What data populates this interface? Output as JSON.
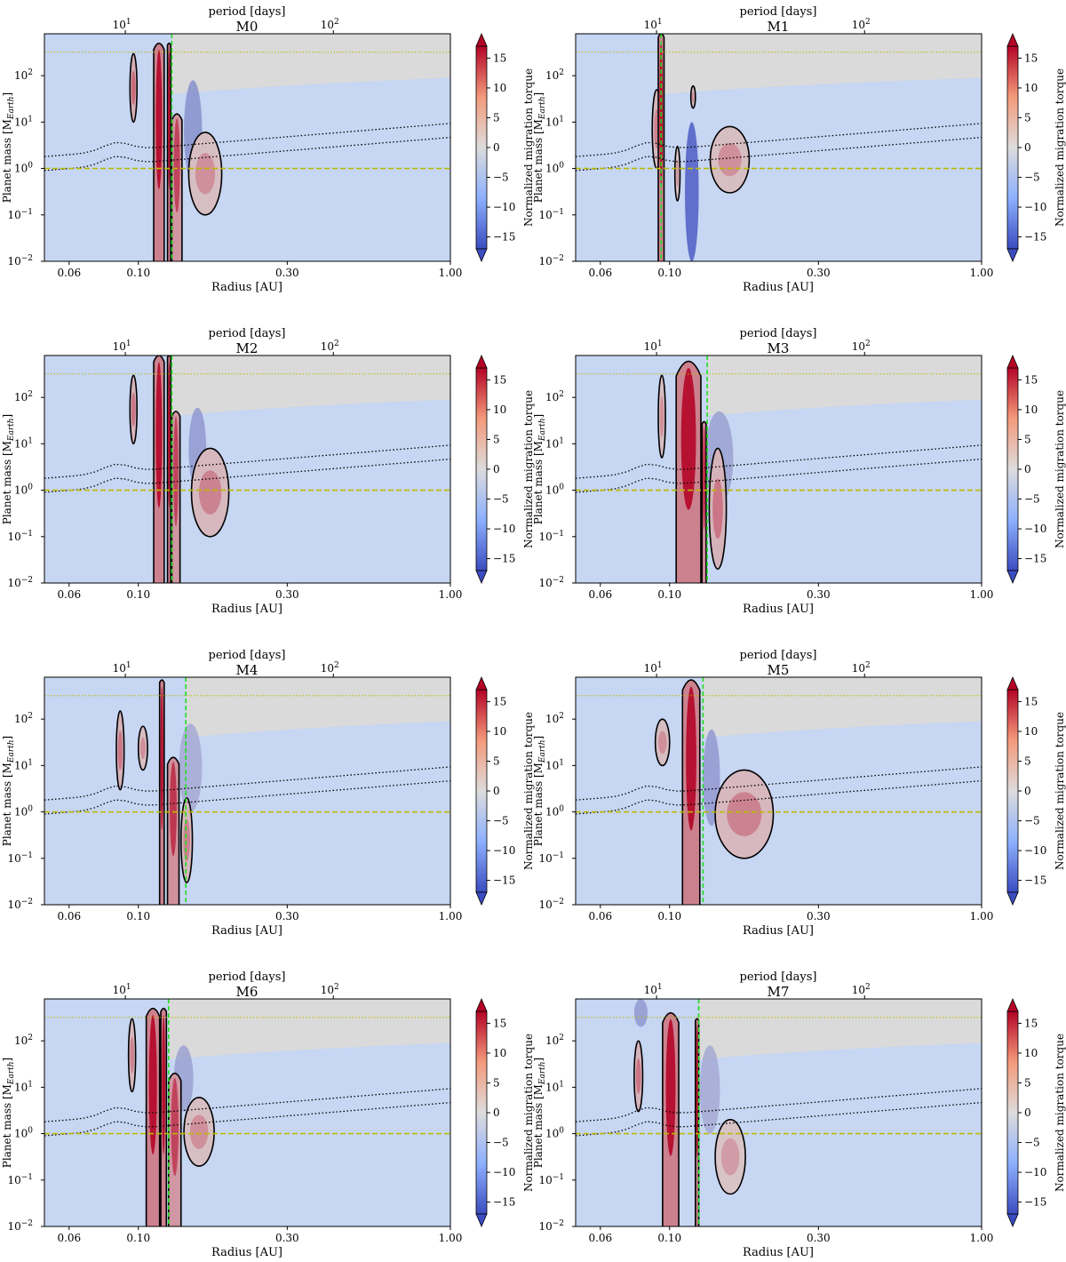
{
  "figure": {
    "colorbar_label": "Normalized migration torque",
    "colorbar_ticks": [
      "15",
      "10",
      "5",
      "0",
      "−5",
      "−10",
      "−15"
    ],
    "colorbar_range": [
      -17,
      17
    ],
    "top_axis_label": "period [days]",
    "top_ticks": [
      {
        "value": 10,
        "label": "10",
        "exp": "1"
      },
      {
        "value": 100,
        "label": "10",
        "exp": "2"
      }
    ],
    "x_axis_label": "Radius [AU]",
    "x_ticks": [
      "0.06",
      "0.10",
      "0.30",
      "1.00"
    ],
    "x_tick_values": [
      0.06,
      0.1,
      0.3,
      1.0
    ],
    "y_axis_label": "Planet mass [M",
    "y_axis_label_sub": "Earth",
    "y_axis_label_end": "]",
    "y_ticks": [
      {
        "value": 0.01,
        "label": "10",
        "exp": "−2"
      },
      {
        "value": 0.1,
        "label": "10",
        "exp": "−1"
      },
      {
        "value": 1,
        "label": "10",
        "exp": "0"
      },
      {
        "value": 10,
        "label": "10",
        "exp": "1"
      },
      {
        "value": 100,
        "label": "10",
        "exp": "2"
      }
    ],
    "colors": {
      "map_high": "#b40426",
      "map_mid": "#dddcdc",
      "map_low": "#3b4cc0",
      "background": "#c6d6f3",
      "gray": "#dadada",
      "green_line": "#22dd22",
      "yellow_line": "#bbbb00",
      "contour": "#000000"
    }
  },
  "chart_data": [
    {
      "type": "heatmap",
      "title": "M0",
      "xscale": "log",
      "yscale": "log",
      "xlim": [
        0.05,
        1.0
      ],
      "ylim": [
        0.01,
        800
      ],
      "green_line_radius": 0.128,
      "ice_giant_mass": 1.0,
      "top_mass": 320,
      "lobes": [
        {
          "x0": 0.094,
          "x1": 0.099,
          "y0": 10,
          "y1": 300,
          "peak": 9
        },
        {
          "x0": 0.112,
          "x1": 0.121,
          "y0": 0.01,
          "y1": 500,
          "peak": 16
        },
        {
          "x0": 0.124,
          "x1": 0.127,
          "y0": 0.01,
          "y1": 500,
          "peak": 16
        },
        {
          "x0": 0.128,
          "x1": 0.138,
          "y0": 0.01,
          "y1": 15,
          "peak": 12
        },
        {
          "x0": 0.145,
          "x1": 0.185,
          "y0": 0.1,
          "y1": 6,
          "peak": 6
        }
      ],
      "blue_regions": [
        {
          "x0": 0.14,
          "x1": 0.16,
          "y0": 0.5,
          "y1": 80,
          "peak": -9
        }
      ]
    },
    {
      "type": "heatmap",
      "title": "M1",
      "xscale": "log",
      "yscale": "log",
      "xlim": [
        0.05,
        1.0
      ],
      "ylim": [
        0.01,
        800
      ],
      "green_line_radius": 0.094,
      "ice_giant_mass": 1.0,
      "top_mass": 320,
      "lobes": [
        {
          "x0": 0.088,
          "x1": 0.094,
          "y0": 1,
          "y1": 50,
          "peak": 7
        },
        {
          "x0": 0.092,
          "x1": 0.096,
          "y0": 0.01,
          "y1": 800,
          "peak": 16
        },
        {
          "x0": 0.104,
          "x1": 0.108,
          "y0": 0.2,
          "y1": 3,
          "peak": 5
        },
        {
          "x0": 0.117,
          "x1": 0.121,
          "y0": 20,
          "y1": 60,
          "peak": 6
        },
        {
          "x0": 0.135,
          "x1": 0.18,
          "y0": 0.3,
          "y1": 8,
          "peak": 6
        }
      ],
      "blue_regions": [
        {
          "x0": 0.112,
          "x1": 0.124,
          "y0": 0.01,
          "y1": 10,
          "peak": -15
        }
      ]
    },
    {
      "type": "heatmap",
      "title": "M2",
      "xscale": "log",
      "yscale": "log",
      "xlim": [
        0.05,
        1.0
      ],
      "ylim": [
        0.01,
        800
      ],
      "green_line_radius": 0.128,
      "ice_giant_mass": 1.0,
      "top_mass": 320,
      "lobes": [
        {
          "x0": 0.094,
          "x1": 0.099,
          "y0": 10,
          "y1": 300,
          "peak": 8
        },
        {
          "x0": 0.112,
          "x1": 0.121,
          "y0": 0.01,
          "y1": 800,
          "peak": 16
        },
        {
          "x0": 0.124,
          "x1": 0.127,
          "y0": 0.01,
          "y1": 800,
          "peak": 16
        },
        {
          "x0": 0.128,
          "x1": 0.136,
          "y0": 0.01,
          "y1": 50,
          "peak": 12
        },
        {
          "x0": 0.148,
          "x1": 0.195,
          "y0": 0.1,
          "y1": 8,
          "peak": 7
        }
      ],
      "blue_regions": [
        {
          "x0": 0.145,
          "x1": 0.165,
          "y0": 1,
          "y1": 60,
          "peak": -8
        }
      ]
    },
    {
      "type": "heatmap",
      "title": "M3",
      "xscale": "log",
      "yscale": "log",
      "xlim": [
        0.05,
        1.0
      ],
      "ylim": [
        0.01,
        800
      ],
      "green_line_radius": 0.132,
      "ice_giant_mass": 1.0,
      "top_mass": 320,
      "lobes": [
        {
          "x0": 0.092,
          "x1": 0.097,
          "y0": 5,
          "y1": 300,
          "peak": 6
        },
        {
          "x0": 0.105,
          "x1": 0.126,
          "y0": 0.01,
          "y1": 600,
          "peak": 16
        },
        {
          "x0": 0.127,
          "x1": 0.131,
          "y0": 0.01,
          "y1": 30,
          "peak": 14
        },
        {
          "x0": 0.134,
          "x1": 0.152,
          "y0": 0.02,
          "y1": 8,
          "peak": 8
        }
      ],
      "blue_regions": [
        {
          "x0": 0.13,
          "x1": 0.16,
          "y0": 0.5,
          "y1": 50,
          "peak": -7
        }
      ]
    },
    {
      "type": "heatmap",
      "title": "M4",
      "xscale": "log",
      "yscale": "log",
      "xlim": [
        0.05,
        1.0
      ],
      "ylim": [
        0.01,
        800
      ],
      "green_line_radius": 0.142,
      "ice_giant_mass": 1.0,
      "top_mass": 320,
      "lobes": [
        {
          "x0": 0.085,
          "x1": 0.09,
          "y0": 3,
          "y1": 150,
          "peak": 8
        },
        {
          "x0": 0.1,
          "x1": 0.107,
          "y0": 8,
          "y1": 70,
          "peak": 6
        },
        {
          "x0": 0.117,
          "x1": 0.121,
          "y0": 0.01,
          "y1": 700,
          "peak": 16
        },
        {
          "x0": 0.124,
          "x1": 0.135,
          "y0": 0.01,
          "y1": 15,
          "peak": 13
        },
        {
          "x0": 0.137,
          "x1": 0.149,
          "y0": 0.03,
          "y1": 2,
          "peak": 7
        }
      ],
      "blue_regions": [
        {
          "x0": 0.135,
          "x1": 0.16,
          "y0": 1,
          "y1": 80,
          "peak": -6
        }
      ]
    },
    {
      "type": "heatmap",
      "title": "M5",
      "xscale": "log",
      "yscale": "log",
      "xlim": [
        0.05,
        1.0
      ],
      "ylim": [
        0.01,
        800
      ],
      "green_line_radius": 0.128,
      "ice_giant_mass": 1.0,
      "top_mass": 320,
      "lobes": [
        {
          "x0": 0.09,
          "x1": 0.1,
          "y0": 10,
          "y1": 100,
          "peak": 6
        },
        {
          "x0": 0.11,
          "x1": 0.125,
          "y0": 0.01,
          "y1": 700,
          "peak": 16
        },
        {
          "x0": 0.14,
          "x1": 0.215,
          "y0": 0.1,
          "y1": 8,
          "peak": 7
        }
      ],
      "blue_regions": [
        {
          "x0": 0.128,
          "x1": 0.145,
          "y0": 0.5,
          "y1": 60,
          "peak": -8
        }
      ]
    },
    {
      "type": "heatmap",
      "title": "M6",
      "xscale": "log",
      "yscale": "log",
      "xlim": [
        0.05,
        1.0
      ],
      "ylim": [
        0.01,
        800
      ],
      "green_line_radius": 0.125,
      "ice_giant_mass": 1.0,
      "top_mass": 320,
      "lobes": [
        {
          "x0": 0.093,
          "x1": 0.098,
          "y0": 8,
          "y1": 300,
          "peak": 7
        },
        {
          "x0": 0.106,
          "x1": 0.117,
          "y0": 0.01,
          "y1": 500,
          "peak": 16
        },
        {
          "x0": 0.118,
          "x1": 0.123,
          "y0": 0.01,
          "y1": 500,
          "peak": 16
        },
        {
          "x0": 0.125,
          "x1": 0.137,
          "y0": 0.01,
          "y1": 20,
          "peak": 12
        },
        {
          "x0": 0.14,
          "x1": 0.175,
          "y0": 0.2,
          "y1": 6,
          "peak": 6
        }
      ],
      "blue_regions": [
        {
          "x0": 0.13,
          "x1": 0.15,
          "y0": 3,
          "y1": 80,
          "peak": -7
        }
      ]
    },
    {
      "type": "heatmap",
      "title": "M7",
      "xscale": "log",
      "yscale": "log",
      "xlim": [
        0.05,
        1.0
      ],
      "ylim": [
        0.01,
        800
      ],
      "green_line_radius": 0.124,
      "ice_giant_mass": 1.0,
      "top_mass": 320,
      "lobes": [
        {
          "x0": 0.077,
          "x1": 0.082,
          "y0": 3,
          "y1": 100,
          "peak": 8
        },
        {
          "x0": 0.095,
          "x1": 0.107,
          "y0": 0.01,
          "y1": 400,
          "peak": 16
        },
        {
          "x0": 0.121,
          "x1": 0.124,
          "y0": 0.01,
          "y1": 300,
          "peak": 16
        },
        {
          "x0": 0.14,
          "x1": 0.175,
          "y0": 0.05,
          "y1": 2,
          "peak": 5
        }
      ],
      "blue_regions": [
        {
          "x0": 0.125,
          "x1": 0.145,
          "y0": 1,
          "y1": 80,
          "peak": -6
        },
        {
          "x0": 0.077,
          "x1": 0.085,
          "y0": 200,
          "y1": 800,
          "peak": -8
        }
      ]
    }
  ]
}
